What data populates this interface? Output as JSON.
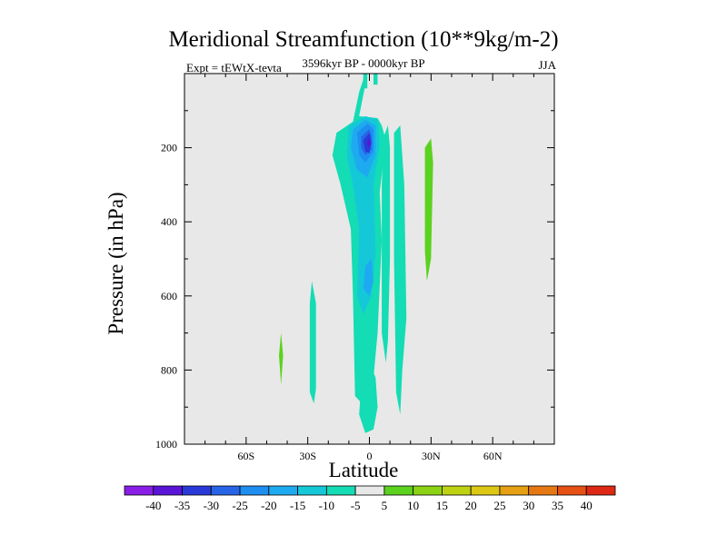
{
  "chart_data": {
    "type": "contour",
    "title": "Meridional Streamfunction (10**9kg/m-2)",
    "subtitle": "3596kyr BP - 0000kyr BP",
    "left_label": "Expt = tEWtX-tevta",
    "right_label": "JJA",
    "xlabel": "Latitude",
    "ylabel": "Pressure (in hPa)",
    "xlim": [
      -90,
      90
    ],
    "ylim": [
      1000,
      0
    ],
    "x_ticks": [
      {
        "value": -60,
        "label": "60S"
      },
      {
        "value": -30,
        "label": "30S"
      },
      {
        "value": 0,
        "label": "0"
      },
      {
        "value": 30,
        "label": "30N"
      },
      {
        "value": 60,
        "label": "60N"
      }
    ],
    "y_ticks": [
      {
        "value": 200,
        "label": "200"
      },
      {
        "value": 400,
        "label": "400"
      },
      {
        "value": 600,
        "label": "600"
      },
      {
        "value": 800,
        "label": "800"
      },
      {
        "value": 1000,
        "label": "1000"
      }
    ],
    "contour_levels": [
      {
        "label": "-40",
        "color": "#8a1ee6"
      },
      {
        "label": "-35",
        "color": "#5a14d8"
      },
      {
        "label": "-30",
        "color": "#2a3ad8"
      },
      {
        "label": "-25",
        "color": "#2864e6"
      },
      {
        "label": "-20",
        "color": "#1e8ef0"
      },
      {
        "label": "-15",
        "color": "#1eaaf0"
      },
      {
        "label": "-10",
        "color": "#14c8d8"
      },
      {
        "label": "-5",
        "color": "#14dcb4"
      },
      {
        "label": "5",
        "color": "#e8e8e8"
      },
      {
        "label": "10",
        "color": "#5ad21e"
      },
      {
        "label": "15",
        "color": "#8cd214"
      },
      {
        "label": "20",
        "color": "#bed214"
      },
      {
        "label": "25",
        "color": "#dcc814"
      },
      {
        "label": "30",
        "color": "#e6a014"
      },
      {
        "label": "35",
        "color": "#e67814"
      },
      {
        "label": "40",
        "color": "#e65014"
      },
      {
        "label": "",
        "color": "#dc2814"
      }
    ],
    "background_color": "#e8e8e8",
    "regions": [
      {
        "name": "main-negative-cell",
        "color": "#14dcb4",
        "points": [
          [
            -5,
            50
          ],
          [
            -2,
            0
          ],
          [
            -1,
            0
          ],
          [
            -2,
            30
          ],
          [
            -5,
            115
          ],
          [
            4,
            120
          ],
          [
            6,
            140
          ],
          [
            8,
            180
          ],
          [
            5,
            320
          ],
          [
            6,
            450
          ],
          [
            4,
            700
          ],
          [
            2,
            820
          ],
          [
            -2,
            900
          ],
          [
            -7,
            870
          ],
          [
            -8,
            600
          ],
          [
            -9,
            420
          ],
          [
            -14,
            300
          ],
          [
            -18,
            220
          ],
          [
            -16,
            160
          ],
          [
            -8,
            130
          ]
        ]
      },
      {
        "name": "negative-cell-minus10",
        "color": "#14c8d8",
        "points": [
          [
            -10,
            140
          ],
          [
            -2,
            115
          ],
          [
            4,
            125
          ],
          [
            5,
            190
          ],
          [
            2,
            300
          ],
          [
            3,
            480
          ],
          [
            1,
            600
          ],
          [
            -3,
            650
          ],
          [
            -6,
            600
          ],
          [
            -5,
            420
          ],
          [
            -8,
            300
          ],
          [
            -11,
            220
          ]
        ]
      },
      {
        "name": "negative-cell-minus15",
        "color": "#1eaaf0",
        "points": [
          [
            -8,
            150
          ],
          [
            -2,
            125
          ],
          [
            3,
            140
          ],
          [
            3,
            220
          ],
          [
            -1,
            280
          ],
          [
            -6,
            260
          ],
          [
            -9,
            200
          ]
        ]
      },
      {
        "name": "negative-cell-minus15-lower",
        "color": "#1eaaf0",
        "points": [
          [
            -2,
            520
          ],
          [
            1,
            500
          ],
          [
            2,
            560
          ],
          [
            0,
            600
          ],
          [
            -3,
            580
          ]
        ]
      },
      {
        "name": "negative-cell-minus20",
        "color": "#1e8ef0",
        "points": [
          [
            -6,
            160
          ],
          [
            -1,
            135
          ],
          [
            2,
            150
          ],
          [
            2,
            210
          ],
          [
            -2,
            240
          ],
          [
            -5,
            220
          ]
        ]
      },
      {
        "name": "negative-cell-minus25",
        "color": "#2864e6",
        "points": [
          [
            -4,
            170
          ],
          [
            0,
            150
          ],
          [
            1,
            170
          ],
          [
            1,
            205
          ],
          [
            -2,
            220
          ],
          [
            -4,
            200
          ]
        ]
      },
      {
        "name": "negative-cell-minus30",
        "color": "#2a3ad8",
        "points": [
          [
            -3,
            180
          ],
          [
            0,
            160
          ],
          [
            1,
            185
          ],
          [
            0,
            215
          ],
          [
            -2,
            210
          ]
        ]
      },
      {
        "name": "negative-cell-core",
        "color": "#5a14d8",
        "points": [
          [
            -1,
            185
          ],
          [
            0,
            175
          ],
          [
            0.5,
            190
          ],
          [
            -0.5,
            200
          ]
        ]
      },
      {
        "name": "right-thin-cell",
        "color": "#14dcb4",
        "points": [
          [
            7,
            170
          ],
          [
            9,
            140
          ],
          [
            10,
            200
          ],
          [
            10,
            500
          ],
          [
            9,
            720
          ],
          [
            8,
            780
          ],
          [
            6,
            700
          ],
          [
            6,
            450
          ],
          [
            6,
            300
          ]
        ]
      },
      {
        "name": "right-bottom-cell",
        "color": "#14dcb4",
        "points": [
          [
            -4,
            840
          ],
          [
            0,
            780
          ],
          [
            3,
            820
          ],
          [
            4,
            900
          ],
          [
            2,
            960
          ],
          [
            -2,
            970
          ],
          [
            -5,
            920
          ]
        ]
      },
      {
        "name": "left-cell",
        "color": "#14dcb4",
        "points": [
          [
            -28,
            560
          ],
          [
            -26,
            620
          ],
          [
            -26,
            850
          ],
          [
            -27,
            890
          ],
          [
            -29,
            860
          ],
          [
            -29,
            620
          ]
        ]
      },
      {
        "name": "right-mid-cell",
        "color": "#14dcb4",
        "points": [
          [
            12,
            160
          ],
          [
            15,
            140
          ],
          [
            17,
            300
          ],
          [
            18,
            660
          ],
          [
            16,
            800
          ],
          [
            15,
            920
          ],
          [
            13,
            860
          ],
          [
            12,
            500
          ]
        ]
      },
      {
        "name": "positive-cell-right",
        "color": "#5ad21e",
        "points": [
          [
            27,
            200
          ],
          [
            30,
            175
          ],
          [
            31,
            240
          ],
          [
            30,
            500
          ],
          [
            28,
            560
          ],
          [
            27,
            480
          ]
        ]
      },
      {
        "name": "positive-cell-left",
        "color": "#5ad21e",
        "points": [
          [
            -44,
            760
          ],
          [
            -43,
            700
          ],
          [
            -42,
            760
          ],
          [
            -43,
            840
          ]
        ]
      },
      {
        "name": "top-strip-cell",
        "color": "#14dcb4",
        "points": [
          [
            -3,
            0
          ],
          [
            -1,
            0
          ],
          [
            -1,
            40
          ],
          [
            -3,
            40
          ]
        ]
      },
      {
        "name": "top-strip-cell-2",
        "color": "#14dcb4",
        "points": [
          [
            2,
            0
          ],
          [
            4,
            0
          ],
          [
            4,
            30
          ],
          [
            2,
            30
          ]
        ]
      }
    ]
  }
}
